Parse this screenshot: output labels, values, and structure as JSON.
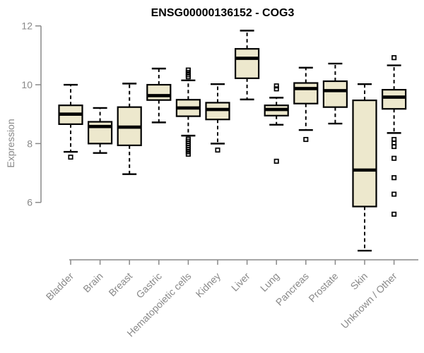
{
  "style": {
    "background": "#FFFFFF",
    "title_color": "#000000",
    "axis_color": "#898989",
    "box_fill": "#EDE8CD",
    "box_stroke": "#000000",
    "median_color": "#000000",
    "outlier_color": "#000000"
  },
  "chart_data": {
    "type": "boxplot",
    "title": "ENSG00000136152 - COG3",
    "xlabel": "",
    "ylabel": "Expression",
    "ylim": [
      6,
      12
    ],
    "yticks": [
      6,
      8,
      10,
      12
    ],
    "grid": false,
    "categories": [
      "Bladder",
      "Brain",
      "Breast",
      "Gastric",
      "Hematopoietic cells",
      "Kidney",
      "Liver",
      "Lung",
      "Pancreas",
      "Prostate",
      "Skin",
      "Unknown / Other"
    ],
    "boxes": [
      {
        "category": "Bladder",
        "whisker_low": 7.72,
        "q1": 8.66,
        "median": 9.0,
        "q3": 9.3,
        "whisker_high": 10.0,
        "outliers": [
          7.54
        ]
      },
      {
        "category": "Brain",
        "whisker_low": 7.68,
        "q1": 8.0,
        "median": 8.58,
        "q3": 8.74,
        "whisker_high": 9.21,
        "outliers": []
      },
      {
        "category": "Breast",
        "whisker_low": 6.96,
        "q1": 7.94,
        "median": 8.56,
        "q3": 9.24,
        "whisker_high": 10.04,
        "outliers": []
      },
      {
        "category": "Gastric",
        "whisker_low": 8.72,
        "q1": 9.48,
        "median": 9.63,
        "q3": 10.0,
        "whisker_high": 10.55,
        "outliers": []
      },
      {
        "category": "Hematopoietic cells",
        "whisker_low": 8.27,
        "q1": 8.93,
        "median": 9.21,
        "q3": 9.49,
        "whisker_high": 10.15,
        "outliers": [
          10.5,
          10.42,
          10.34,
          10.27,
          8.15,
          8.08,
          8.01,
          7.94,
          7.87,
          7.8,
          7.72,
          7.64
        ]
      },
      {
        "category": "Kidney",
        "whisker_low": 8.0,
        "q1": 8.82,
        "median": 9.16,
        "q3": 9.39,
        "whisker_high": 10.02,
        "outliers": [
          7.78
        ]
      },
      {
        "category": "Liver",
        "whisker_low": 9.5,
        "q1": 10.22,
        "median": 10.9,
        "q3": 11.22,
        "whisker_high": 11.84,
        "outliers": []
      },
      {
        "category": "Lung",
        "whisker_low": 8.64,
        "q1": 8.95,
        "median": 9.16,
        "q3": 9.3,
        "whisker_high": 9.56,
        "outliers": [
          9.96,
          9.86,
          7.4
        ]
      },
      {
        "category": "Pancreas",
        "whisker_low": 8.46,
        "q1": 9.36,
        "median": 9.87,
        "q3": 10.06,
        "whisker_high": 10.58,
        "outliers": [
          8.14
        ]
      },
      {
        "category": "Prostate",
        "whisker_low": 8.68,
        "q1": 9.24,
        "median": 9.8,
        "q3": 10.12,
        "whisker_high": 10.72,
        "outliers": []
      },
      {
        "category": "Skin",
        "whisker_low": 4.36,
        "q1": 5.86,
        "median": 7.1,
        "q3": 9.47,
        "whisker_high": 10.02,
        "outliers": []
      },
      {
        "category": "Unknown / Other",
        "whisker_low": 8.36,
        "q1": 9.18,
        "median": 9.58,
        "q3": 9.83,
        "whisker_high": 10.66,
        "outliers": [
          10.92,
          8.14,
          8.02,
          7.9,
          7.5,
          6.84,
          6.28,
          5.6
        ]
      }
    ]
  }
}
